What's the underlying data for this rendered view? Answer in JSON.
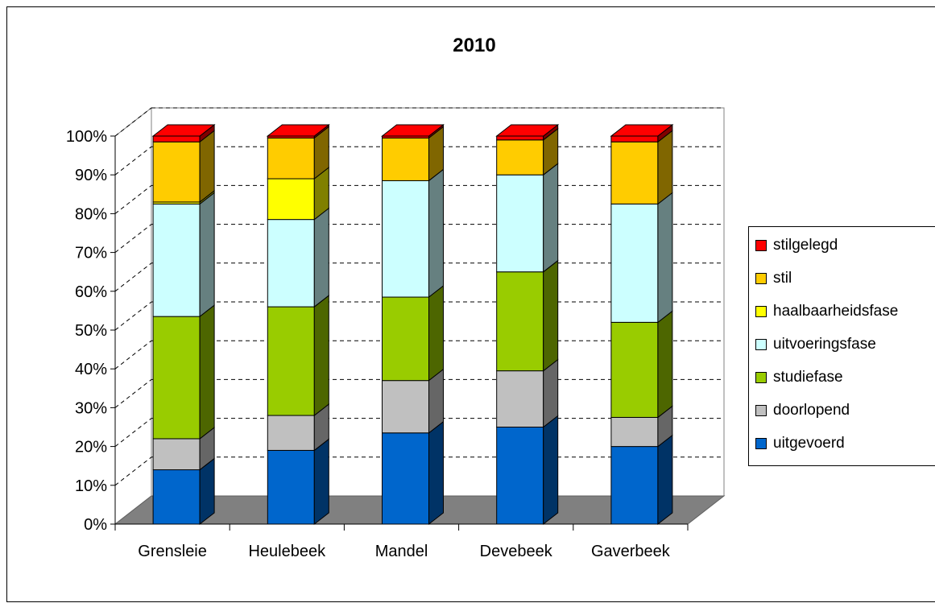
{
  "chart_data": {
    "type": "bar",
    "stacked": true,
    "three_d": true,
    "title": "2010",
    "xlabel": "",
    "ylabel": "",
    "ylim": [
      0,
      100
    ],
    "y_ticks": [
      "0%",
      "10%",
      "20%",
      "30%",
      "40%",
      "50%",
      "60%",
      "70%",
      "80%",
      "90%",
      "100%"
    ],
    "grid": true,
    "legend_position": "right",
    "categories": [
      "Grensleie",
      "Heulebeek",
      "Mandel",
      "Devebeek",
      "Gaverbeek"
    ],
    "series": [
      {
        "name": "uitgevoerd",
        "color": "#0066CC",
        "side": "#003366",
        "values": [
          14,
          19,
          23.5,
          25,
          20
        ]
      },
      {
        "name": "doorlopend",
        "color": "#C0C0C0",
        "side": "#666666",
        "values": [
          8,
          9,
          13.5,
          14.5,
          7.5
        ]
      },
      {
        "name": "studiefase",
        "color": "#99CC00",
        "side": "#4D6600",
        "values": [
          31.5,
          28,
          21.5,
          25.5,
          24.5
        ]
      },
      {
        "name": "uitvoeringsfase",
        "color": "#CCFFFF",
        "side": "#668080",
        "values": [
          29,
          22.5,
          30,
          25,
          30.5
        ]
      },
      {
        "name": "haalbaarheidsfase",
        "color": "#FFFF00",
        "side": "#808000",
        "values": [
          0.5,
          10.5,
          0,
          0,
          0
        ]
      },
      {
        "name": "stil",
        "color": "#FFCC00",
        "side": "#806600",
        "values": [
          15.5,
          10.5,
          11,
          9,
          16
        ]
      },
      {
        "name": "stilgelegd",
        "color": "#FF0000",
        "side": "#800000",
        "values": [
          1.5,
          0.5,
          0.5,
          1,
          1.5
        ]
      }
    ]
  }
}
